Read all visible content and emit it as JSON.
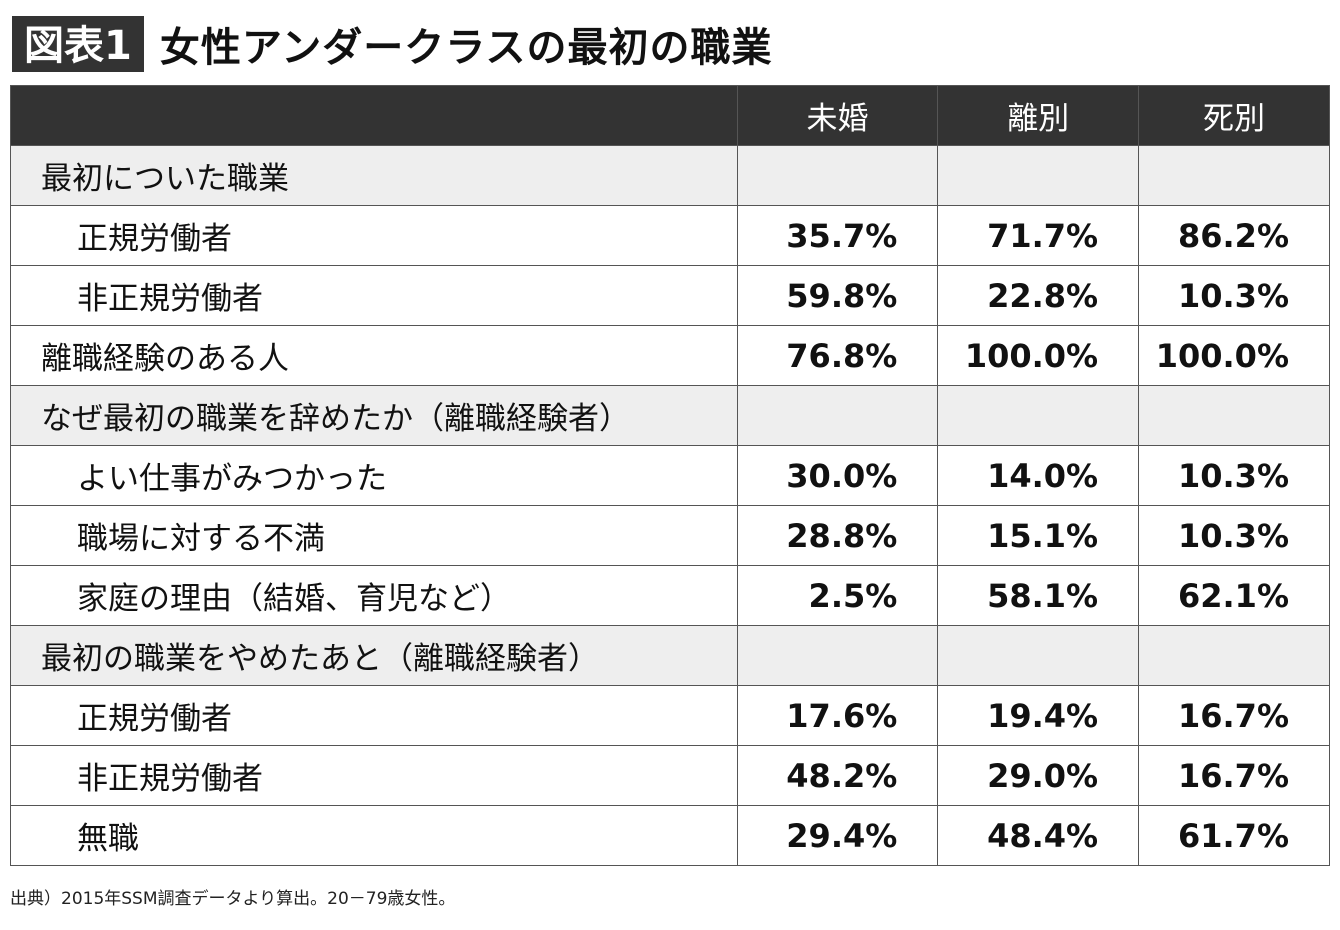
{
  "title": {
    "badge": "図表1",
    "text": "女性アンダークラスの最初の職業"
  },
  "chart_data": {
    "type": "table",
    "columns": [
      "",
      "未婚",
      "離別",
      "死別"
    ],
    "rows": [
      {
        "label": "最初についた職業",
        "kind": "section",
        "values": [
          "",
          "",
          ""
        ]
      },
      {
        "label": "正規労働者",
        "kind": "indent",
        "values": [
          "35.7%",
          "71.7%",
          "86.2%"
        ]
      },
      {
        "label": "非正規労働者",
        "kind": "indent",
        "values": [
          "59.8%",
          "22.8%",
          "10.3%"
        ]
      },
      {
        "label": "離職経験のある人",
        "kind": "plain",
        "values": [
          "76.8%",
          "100.0%",
          "100.0%"
        ]
      },
      {
        "label": "なぜ最初の職業を辞めたか（離職経験者）",
        "kind": "section",
        "values": [
          "",
          "",
          ""
        ]
      },
      {
        "label": "よい仕事がみつかった",
        "kind": "indent",
        "values": [
          "30.0%",
          "14.0%",
          "10.3%"
        ]
      },
      {
        "label": "職場に対する不満",
        "kind": "indent",
        "values": [
          "28.8%",
          "15.1%",
          "10.3%"
        ]
      },
      {
        "label": "家庭の理由（結婚、育児など）",
        "kind": "indent",
        "values": [
          "2.5%",
          "58.1%",
          "62.1%"
        ]
      },
      {
        "label": "最初の職業をやめたあと（離職経験者）",
        "kind": "section",
        "values": [
          "",
          "",
          ""
        ]
      },
      {
        "label": "正規労働者",
        "kind": "indent",
        "values": [
          "17.6%",
          "19.4%",
          "16.7%"
        ]
      },
      {
        "label": "非正規労働者",
        "kind": "indent",
        "values": [
          "48.2%",
          "29.0%",
          "16.7%"
        ]
      },
      {
        "label": "無職",
        "kind": "indent",
        "values": [
          "29.4%",
          "48.4%",
          "61.7%"
        ]
      }
    ]
  },
  "source": "出典）2015年SSM調査データより算出。20－79歳女性。",
  "colors": {
    "header_bg": "#333333",
    "section_bg": "#eeeeee"
  }
}
